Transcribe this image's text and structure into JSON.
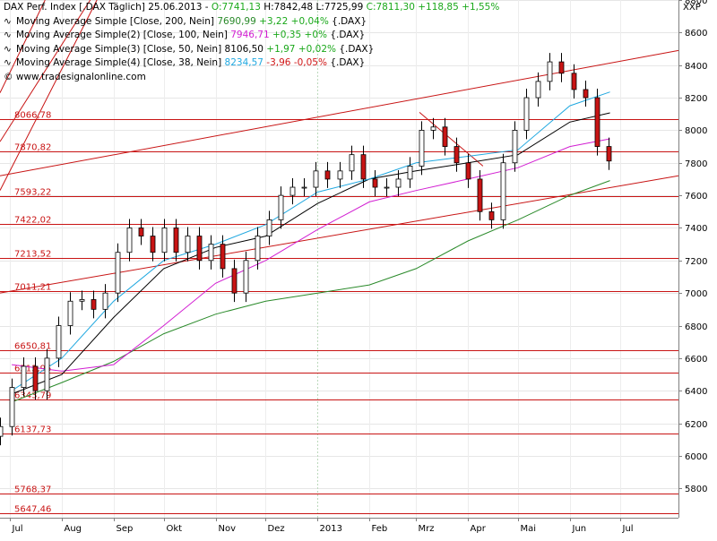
{
  "header": {
    "instrument": "DAX Perf. Index [.DAX Täglich]",
    "date": "25.06.2013",
    "open": "O:7741,13",
    "high": "H:7842,48",
    "low": "L:7725,99",
    "close": "C:7811,30",
    "change": "+118,85",
    "change_pct": "+1,55%",
    "axis_unit": "XXP",
    "copyright": "© www.tradesignalonline.com"
  },
  "legend": [
    {
      "label": "Moving Average Simple [Close, 200, Nein]",
      "value": "7690,99",
      "delta": "+3,22",
      "pct": "+0,04%",
      "suffix": "{.DAX}",
      "dir": "up",
      "color": "#2a8a2a"
    },
    {
      "label": "Moving Average Simple(2) [Close, 100, Nein]",
      "value": "7946,71",
      "delta": "+0,35",
      "pct": "+0%",
      "suffix": "{.DAX}",
      "dir": "up",
      "color": "#d21fd2"
    },
    {
      "label": "Moving Average Simple(3) [Close, 50, Nein]",
      "value": "8106,50",
      "delta": "+1,97",
      "pct": "+0,02%",
      "suffix": "{.DAX}",
      "dir": "up",
      "color": "#000000"
    },
    {
      "label": "Moving Average Simple(4) [Close, 38, Nein]",
      "value": "8234,57",
      "delta": "-3,96",
      "pct": "-0,05%",
      "suffix": "{.DAX}",
      "dir": "down",
      "color": "#20a8e0"
    }
  ],
  "chart_data": {
    "type": "line",
    "y_range": [
      5620,
      8800
    ],
    "y_ticks": [
      5800,
      6000,
      6200,
      6400,
      6600,
      6800,
      7000,
      7200,
      7400,
      7600,
      7800,
      8000,
      8200,
      8400,
      8600,
      8800
    ],
    "y_tick_labels": [
      "5800",
      "6000",
      "6200",
      "6400",
      "6600",
      "6800",
      "7000",
      "7200",
      "7400",
      "7600",
      "7800",
      "8000",
      "8200",
      "8400",
      "8600",
      "8800"
    ],
    "x_range": [
      "2012-06-25",
      "2013-08-05"
    ],
    "x_ticks": [
      "2012-07-01",
      "2012-08-01",
      "2012-09-01",
      "2012-10-01",
      "2012-11-01",
      "2012-12-01",
      "2013-01-01",
      "2013-02-01",
      "2013-03-01",
      "2013-04-01",
      "2013-05-01",
      "2013-06-01",
      "2013-07-01"
    ],
    "x_tick_labels": [
      "Jul",
      "Aug",
      "Sep",
      "Okt",
      "Nov",
      "Dez",
      "2013",
      "Feb",
      "Mrz",
      "Apr",
      "Mai",
      "Jun",
      "Jul"
    ],
    "horizontal_levels": [
      {
        "value": 8066.78,
        "label": "8066,78"
      },
      {
        "value": 7870.82,
        "label": "7870,82"
      },
      {
        "value": 7593.22,
        "label": "7593,22"
      },
      {
        "value": 7422.02,
        "label": "7422,02"
      },
      {
        "value": 7213.52,
        "label": "7213,52"
      },
      {
        "value": 7011.21,
        "label": "7011,21"
      },
      {
        "value": 6650.81,
        "label": "6650,81"
      },
      {
        "value": 6513.95,
        "label": "6513,95"
      },
      {
        "value": 6343.79,
        "label": "6343,79"
      },
      {
        "value": 6137.73,
        "label": "6137,73"
      },
      {
        "value": 5768.37,
        "label": "5768,37"
      },
      {
        "value": 5647.46,
        "label": "5647,46"
      }
    ],
    "trend_lines": [
      {
        "from": [
          "2012-06-25",
          7720
        ],
        "to": [
          "2013-08-05",
          8490
        ]
      },
      {
        "from": [
          "2012-06-25",
          7000
        ],
        "to": [
          "2013-08-05",
          7720
        ]
      },
      {
        "from": [
          "2012-06-25",
          8230
        ],
        "to": [
          "2012-07-22",
          8800
        ]
      },
      {
        "from": [
          "2012-06-25",
          7930
        ],
        "to": [
          "2012-08-18",
          8800
        ]
      },
      {
        "from": [
          "2012-06-25",
          7630
        ],
        "to": [
          "2012-08-22",
          8800
        ]
      },
      {
        "from": [
          "2013-03-03",
          8110
        ],
        "to": [
          "2013-04-10",
          7780
        ]
      }
    ],
    "series": [
      {
        "name": "DAX Perf. Index [.DAX Täglich]",
        "style": "candles",
        "x": [
          "2012-06-25",
          "2012-07-02",
          "2012-07-09",
          "2012-07-16",
          "2012-07-23",
          "2012-07-30",
          "2012-08-06",
          "2012-08-13",
          "2012-08-20",
          "2012-08-27",
          "2012-09-03",
          "2012-09-10",
          "2012-09-17",
          "2012-09-24",
          "2012-10-01",
          "2012-10-08",
          "2012-10-15",
          "2012-10-22",
          "2012-10-29",
          "2012-11-05",
          "2012-11-12",
          "2012-11-19",
          "2012-11-26",
          "2012-12-03",
          "2012-12-10",
          "2012-12-17",
          "2012-12-24",
          "2012-12-31",
          "2013-01-07",
          "2013-01-14",
          "2013-01-21",
          "2013-01-28",
          "2013-02-04",
          "2013-02-11",
          "2013-02-18",
          "2013-02-25",
          "2013-03-04",
          "2013-03-11",
          "2013-03-18",
          "2013-03-25",
          "2013-04-01",
          "2013-04-08",
          "2013-04-15",
          "2013-04-22",
          "2013-04-29",
          "2013-05-06",
          "2013-05-13",
          "2013-05-20",
          "2013-05-27",
          "2013-06-03",
          "2013-06-10",
          "2013-06-17",
          "2013-06-24"
        ],
        "values": [
          6180,
          6420,
          6550,
          6400,
          6600,
          6800,
          6950,
          6960,
          6900,
          7000,
          7250,
          7400,
          7350,
          7250,
          7400,
          7250,
          7350,
          7200,
          7300,
          7150,
          7000,
          7200,
          7350,
          7450,
          7600,
          7650,
          7650,
          7750,
          7700,
          7750,
          7850,
          7700,
          7650,
          7650,
          7700,
          7780,
          8000,
          8020,
          7900,
          7800,
          7700,
          7500,
          7450,
          7800,
          8000,
          8200,
          8300,
          8420,
          8350,
          8250,
          8200,
          7900,
          7811
        ]
      },
      {
        "name": "Moving Average Simple [Close, 200, Nein]",
        "style": "line",
        "color": "#2a8a2a",
        "x": [
          "2012-07-02",
          "2012-08-01",
          "2012-09-01",
          "2012-10-01",
          "2012-11-01",
          "2012-12-01",
          "2013-01-01",
          "2013-02-01",
          "2013-03-01",
          "2013-04-01",
          "2013-05-01",
          "2013-06-01",
          "2013-06-25"
        ],
        "values": [
          6330,
          6450,
          6580,
          6750,
          6870,
          6950,
          7000,
          7050,
          7150,
          7320,
          7450,
          7600,
          7691
        ]
      },
      {
        "name": "Moving Average Simple(2) [Close, 100, Nein]",
        "style": "line",
        "color": "#d21fd2",
        "x": [
          "2012-07-02",
          "2012-08-01",
          "2012-09-01",
          "2012-10-01",
          "2012-11-01",
          "2012-12-01",
          "2013-01-01",
          "2013-02-01",
          "2013-03-01",
          "2013-04-01",
          "2013-05-01",
          "2013-06-01",
          "2013-06-25"
        ],
        "values": [
          6560,
          6520,
          6560,
          6800,
          7060,
          7200,
          7390,
          7560,
          7630,
          7700,
          7770,
          7900,
          7947
        ]
      },
      {
        "name": "Moving Average Simple(3) [Close, 50, Nein]",
        "style": "line",
        "color": "#000000",
        "x": [
          "2012-07-02",
          "2012-08-01",
          "2012-09-01",
          "2012-10-01",
          "2012-11-01",
          "2012-12-01",
          "2013-01-01",
          "2013-02-01",
          "2013-03-01",
          "2013-04-01",
          "2013-05-01",
          "2013-06-01",
          "2013-06-25"
        ],
        "values": [
          6380,
          6500,
          6850,
          7150,
          7280,
          7350,
          7550,
          7700,
          7750,
          7800,
          7850,
          8050,
          8107
        ]
      },
      {
        "name": "Moving Average Simple(4) [Close, 38, Nein]",
        "style": "line",
        "color": "#20a8e0",
        "x": [
          "2012-07-02",
          "2012-08-01",
          "2012-09-01",
          "2012-10-01",
          "2012-11-01",
          "2012-12-01",
          "2013-01-01",
          "2013-02-01",
          "2013-03-01",
          "2013-04-01",
          "2013-05-01",
          "2013-06-01",
          "2013-06-25"
        ],
        "values": [
          6400,
          6600,
          6950,
          7200,
          7300,
          7420,
          7620,
          7700,
          7800,
          7840,
          7880,
          8150,
          8235
        ]
      }
    ],
    "grid": true
  }
}
